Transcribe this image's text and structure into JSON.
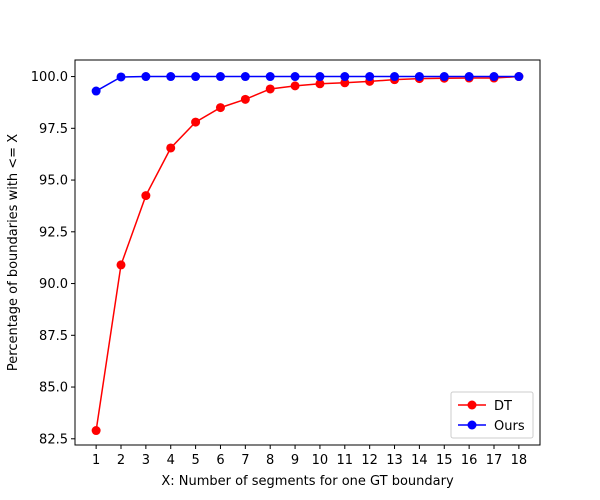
{
  "chart_data": {
    "type": "line",
    "title": "",
    "xlabel": "X: Number of segments for one GT boundary",
    "ylabel": "Percentage of boundaries with <= X",
    "x": [
      1,
      2,
      3,
      4,
      5,
      6,
      7,
      8,
      9,
      10,
      11,
      12,
      13,
      14,
      15,
      16,
      17,
      18
    ],
    "xticks": [
      "1",
      "2",
      "3",
      "4",
      "5",
      "6",
      "7",
      "8",
      "9",
      "10",
      "11",
      "12",
      "13",
      "14",
      "15",
      "16",
      "17",
      "18"
    ],
    "yticks": [
      "82.5",
      "85.0",
      "87.5",
      "90.0",
      "92.5",
      "95.0",
      "97.5",
      "100.0"
    ],
    "ylim": [
      82.2,
      100.8
    ],
    "grid": false,
    "legend_position": "lower right",
    "series": [
      {
        "name": "DT",
        "color": "#ff0000",
        "values": [
          82.9,
          90.9,
          94.25,
          96.55,
          97.8,
          98.5,
          98.9,
          99.4,
          99.55,
          99.65,
          99.7,
          99.77,
          99.85,
          99.9,
          99.92,
          99.93,
          99.93,
          100.0
        ]
      },
      {
        "name": "Ours",
        "color": "#0000ff",
        "values": [
          99.3,
          99.98,
          100.0,
          100.0,
          100.0,
          100.0,
          100.0,
          100.0,
          100.0,
          100.0,
          100.0,
          100.0,
          100.0,
          100.0,
          100.0,
          100.0,
          100.0,
          100.0
        ]
      }
    ]
  }
}
